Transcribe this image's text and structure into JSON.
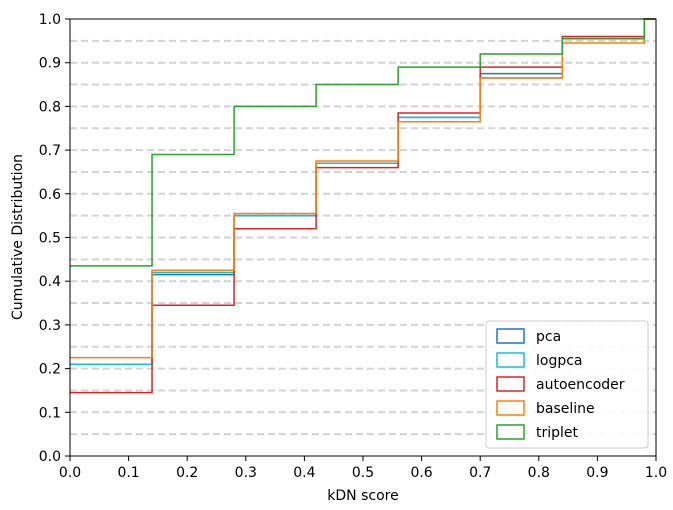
{
  "chart_data": {
    "type": "line",
    "step": "post",
    "xlabel": "kDN score",
    "ylabel": "Cumulative Distribution",
    "xlim": [
      0.0,
      1.0
    ],
    "ylim": [
      0.0,
      1.0
    ],
    "xticks": [
      "0.0",
      "0.1",
      "0.2",
      "0.3",
      "0.4",
      "0.5",
      "0.6",
      "0.7",
      "0.8",
      "0.9",
      "1.0"
    ],
    "yticks": [
      "0.0",
      "0.1",
      "0.2",
      "0.3",
      "0.4",
      "0.5",
      "0.6",
      "0.7",
      "0.8",
      "0.9",
      "1.0"
    ],
    "grid": "horizontal-dashed",
    "grid_levels": [
      0.05,
      0.1,
      0.15,
      0.2,
      0.25,
      0.3,
      0.35,
      0.4,
      0.45,
      0.5,
      0.55,
      0.6,
      0.65,
      0.7,
      0.75,
      0.8,
      0.85,
      0.9,
      0.95
    ],
    "legend_position": "lower-right",
    "x": [
      0.0,
      0.14,
      0.28,
      0.42,
      0.56,
      0.7,
      0.84,
      0.98,
      1.0
    ],
    "series": [
      {
        "name": "pca",
        "color": "#1f77b4",
        "values": [
          0.21,
          0.415,
          0.55,
          0.67,
          0.775,
          0.875,
          0.955,
          1.0,
          1.0
        ]
      },
      {
        "name": "logpca",
        "color": "#17becf",
        "values": [
          0.21,
          0.42,
          0.55,
          0.67,
          0.775,
          0.865,
          0.955,
          1.0,
          1.0
        ]
      },
      {
        "name": "autoencoder",
        "color": "#d62728",
        "values": [
          0.145,
          0.345,
          0.52,
          0.66,
          0.785,
          0.89,
          0.96,
          1.0,
          1.0
        ]
      },
      {
        "name": "baseline",
        "color": "#ff7f0e",
        "values": [
          0.225,
          0.425,
          0.555,
          0.675,
          0.765,
          0.865,
          0.945,
          1.0,
          1.0
        ]
      },
      {
        "name": "triplet",
        "color": "#2ca02c",
        "values": [
          0.435,
          0.69,
          0.8,
          0.85,
          0.89,
          0.92,
          0.955,
          1.0,
          1.0
        ]
      }
    ]
  }
}
